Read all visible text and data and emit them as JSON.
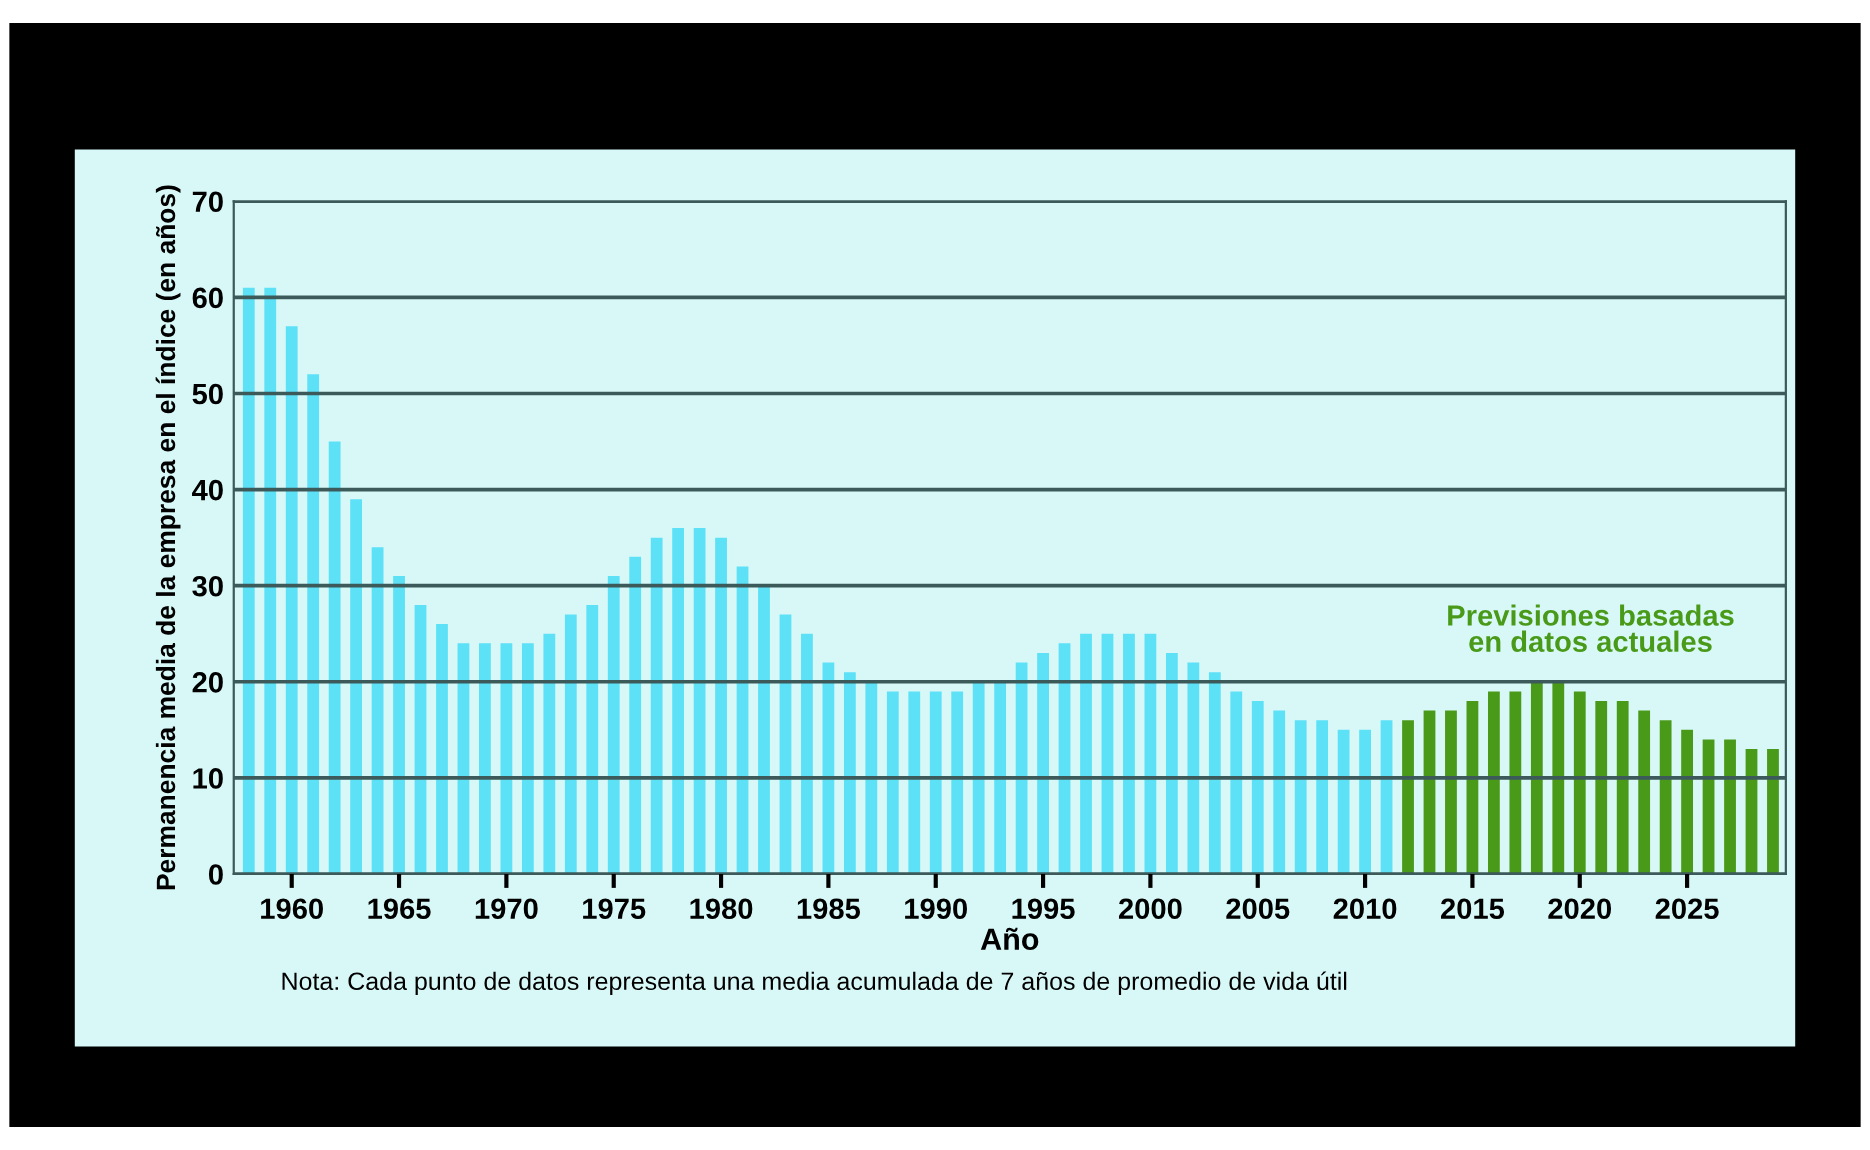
{
  "chart_data": {
    "type": "bar",
    "xlabel": "Año",
    "ylabel": "Permanencia media de la empresa en el índice (en años)",
    "series": [
      {
        "color": "#5ce1f7",
        "x": [
          1958,
          1959,
          1960,
          1961,
          1962,
          1963,
          1964,
          1965,
          1966,
          1967,
          1968,
          1969,
          1970,
          1971,
          1972,
          1973,
          1974,
          1975,
          1976,
          1977,
          1978,
          1979,
          1980,
          1981,
          1982,
          1983,
          1984,
          1985,
          1986,
          1987,
          1988,
          1989,
          1990,
          1991,
          1992,
          1993,
          1994,
          1995,
          1996,
          1997,
          1998,
          1999,
          2000,
          2001,
          2002,
          2003,
          2004,
          2005,
          2006,
          2007,
          2008,
          2009,
          2010,
          2011
        ],
        "values": [
          61,
          61,
          57,
          52,
          45,
          39,
          34,
          31,
          28,
          26,
          24,
          24,
          24,
          24,
          25,
          27,
          28,
          31,
          33,
          35,
          36,
          36,
          35,
          32,
          30,
          27,
          25,
          22,
          21,
          20,
          19,
          19,
          19,
          19,
          20,
          20,
          22,
          23,
          24,
          25,
          25,
          25,
          25,
          23,
          22,
          21,
          19,
          18,
          17,
          16,
          16,
          15,
          15,
          16
        ]
      },
      {
        "name": "Previsiones basadas\nen datos actuales",
        "color": "#4a9a1a",
        "x": [
          2012,
          2013,
          2014,
          2015,
          2016,
          2017,
          2018,
          2019,
          2020,
          2021,
          2022,
          2023,
          2024,
          2025,
          2026,
          2027,
          2028,
          2029
        ],
        "values": [
          16,
          17,
          17,
          18,
          19,
          19,
          20,
          20,
          19,
          18,
          18,
          17,
          16,
          15,
          14,
          14,
          13,
          13
        ]
      }
    ],
    "xlim": [
      1957.3,
      2029.6
    ],
    "xticks": [
      1960,
      1965,
      1970,
      1975,
      1980,
      1985,
      1990,
      1995,
      2000,
      2005,
      2010,
      2015,
      2020,
      2025
    ],
    "ylim": [
      0,
      70
    ],
    "yticks": [
      0,
      10,
      20,
      30,
      40,
      50,
      60,
      70
    ],
    "grid": "y",
    "legend": false,
    "annotations": [
      "Nota: Cada punto de datos representa una media acumulada de 7 años de promedio de vida útil"
    ]
  }
}
